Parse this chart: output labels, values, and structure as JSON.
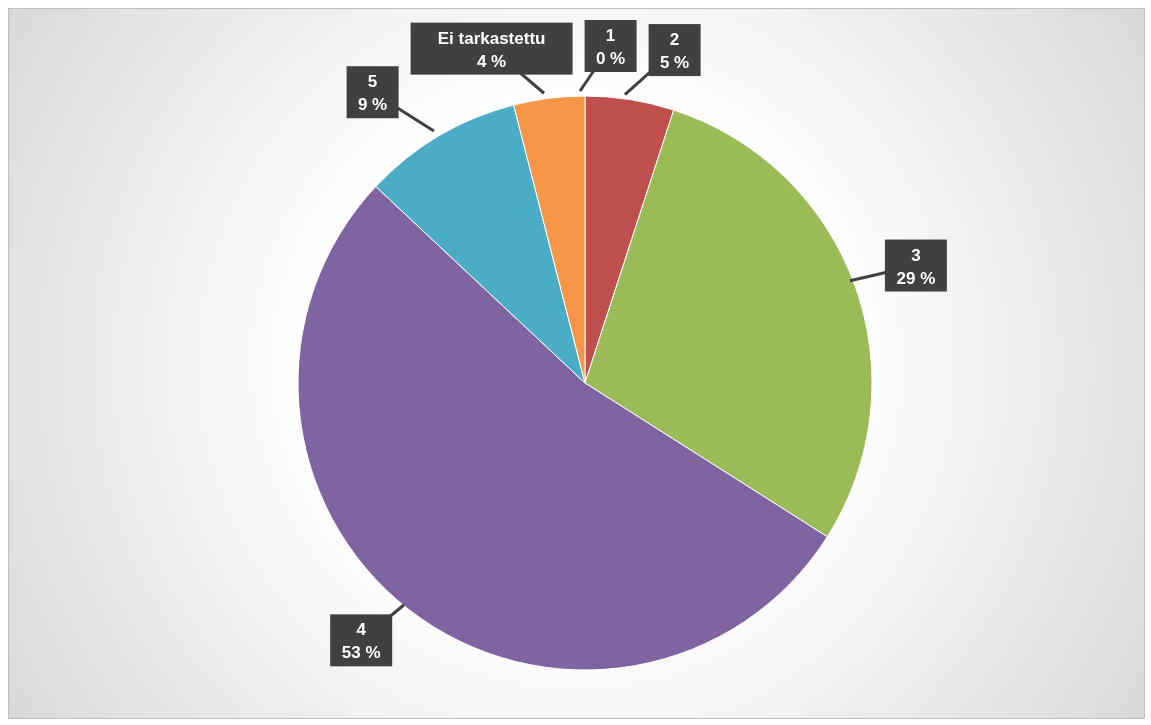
{
  "chart_data": {
    "type": "pie",
    "categories": [
      "1",
      "2",
      "3",
      "4",
      "5",
      "Ei tarkastettu"
    ],
    "values": [
      0,
      5,
      29,
      53,
      9,
      4
    ],
    "colors": [
      "#4f81bd",
      "#c0504d",
      "#9bbb59",
      "#8064a2",
      "#4bacc6",
      "#f79646"
    ],
    "value_labels": [
      "0 %",
      "5 %",
      "29 %",
      "53 %",
      "9 %",
      "4 %"
    ],
    "legend": false
  }
}
